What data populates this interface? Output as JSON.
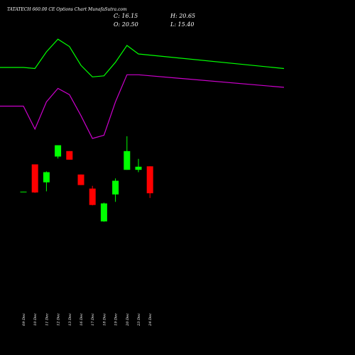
{
  "chart_data": {
    "type": "candlestick",
    "title": "TATATECH 660.00 CE Options Chart MunafaSutra.com",
    "ohlc_summary": {
      "close_label": "C: 16.15",
      "high_label": "H: 20.65",
      "open_label": "O: 20.50",
      "low_label": "L: 15.40"
    },
    "categories": [
      "09 Dec",
      "10 Dec",
      "11 Dec",
      "12 Dec",
      "13 Dec",
      "16 Dec",
      "17 Dec",
      "18 Dec",
      "19 Dec",
      "20 Dec",
      "23 Dec",
      "24 Dec"
    ],
    "candles": [
      {
        "open": 20.0,
        "high": 20.05,
        "low": 19.95,
        "close": 20.05
      },
      {
        "open": 27.0,
        "high": 27.0,
        "low": 19.7,
        "close": 19.8
      },
      {
        "open": 22.4,
        "high": 25.2,
        "low": 20.1,
        "close": 25.0
      },
      {
        "open": 29.0,
        "high": 31.9,
        "low": 28.5,
        "close": 31.9
      },
      {
        "open": 30.4,
        "high": 30.4,
        "low": 28.2,
        "close": 28.2
      },
      {
        "open": 24.4,
        "high": 24.4,
        "low": 21.7,
        "close": 21.7
      },
      {
        "open": 20.8,
        "high": 21.5,
        "low": 16.5,
        "close": 16.6
      },
      {
        "open": 12.4,
        "high": 17.2,
        "low": 12.3,
        "close": 17.0
      },
      {
        "open": 19.3,
        "high": 23.4,
        "low": 17.4,
        "close": 22.8
      },
      {
        "open": 25.6,
        "high": 34.2,
        "low": 25.6,
        "close": 30.4
      },
      {
        "open": 25.6,
        "high": 28.4,
        "low": 25.0,
        "close": 26.4
      },
      {
        "open": 26.5,
        "high": 26.5,
        "low": 18.4,
        "close": 19.6
      }
    ],
    "upper_band_line": {
      "color": "#00ff00",
      "x": [
        "08 Dec",
        "09 Dec",
        "10 Dec",
        "11 Dec",
        "12 Dec",
        "13 Dec",
        "16 Dec",
        "17 Dec",
        "18 Dec",
        "19 Dec",
        "20 Dec",
        "23 Dec",
        "24 Dec"
      ],
      "values": [
        70.0,
        70.0,
        69.4,
        78.8,
        85.9,
        81.8,
        71.2,
        64.7,
        65.3,
        72.9,
        82.4,
        77.6,
        69.4
      ]
    },
    "lower_band_line": {
      "color": "#cc00cc",
      "x": [
        "08 Dec",
        "09 Dec",
        "10 Dec",
        "11 Dec",
        "12 Dec",
        "13 Dec",
        "16 Dec",
        "17 Dec",
        "18 Dec",
        "19 Dec",
        "20 Dec",
        "23 Dec",
        "24 Dec"
      ],
      "values": [
        48.2,
        48.2,
        35.3,
        50.6,
        58.2,
        54.7,
        42.9,
        30.0,
        31.8,
        50.6,
        65.9,
        65.9,
        58.8
      ]
    },
    "colors": {
      "up": "#00ff00",
      "down": "#ff0000",
      "flat": "#00aa00",
      "background": "#000000",
      "text": "#ffffff"
    },
    "ylim": [
      0,
      100
    ]
  }
}
